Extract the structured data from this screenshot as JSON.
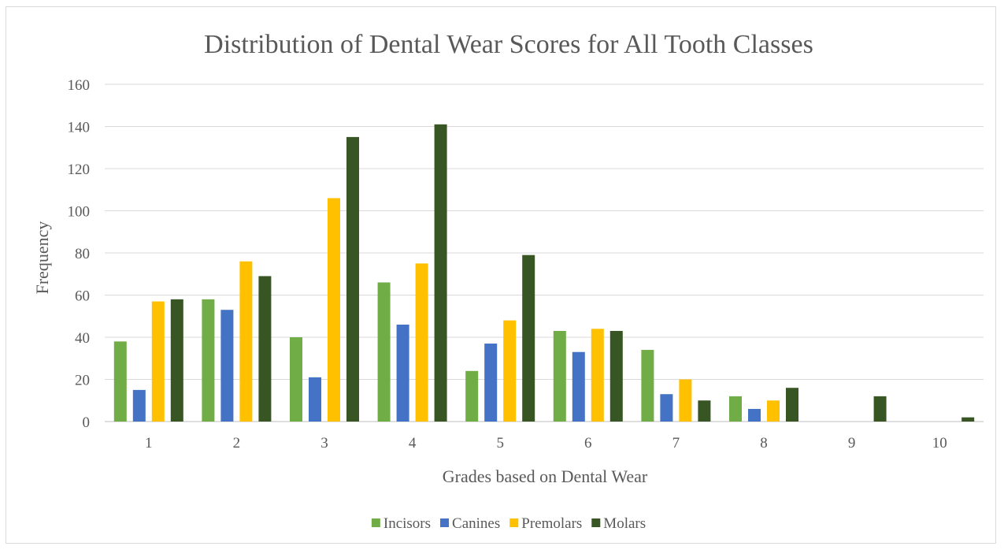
{
  "chart_data": {
    "type": "bar",
    "title": "Distribution of Dental Wear Scores for All Tooth Classes",
    "xlabel": "Grades based on Dental Wear",
    "ylabel": "Frequency",
    "categories": [
      "1",
      "2",
      "3",
      "4",
      "5",
      "6",
      "7",
      "8",
      "9",
      "10"
    ],
    "series": [
      {
        "name": "Incisors",
        "color": "#70ad47",
        "values": [
          38,
          58,
          40,
          66,
          24,
          43,
          34,
          12,
          0,
          0
        ]
      },
      {
        "name": "Canines",
        "color": "#4472c4",
        "values": [
          15,
          53,
          21,
          46,
          37,
          33,
          13,
          6,
          0,
          0
        ]
      },
      {
        "name": "Premolars",
        "color": "#ffc000",
        "values": [
          57,
          76,
          106,
          75,
          48,
          44,
          20,
          10,
          0,
          0
        ]
      },
      {
        "name": "Molars",
        "color": "#375623",
        "values": [
          58,
          69,
          135,
          141,
          79,
          43,
          10,
          16,
          12,
          2
        ]
      }
    ],
    "ylim": [
      0,
      160
    ],
    "yticks": [
      0,
      20,
      40,
      60,
      80,
      100,
      120,
      140,
      160
    ],
    "grid": true,
    "legend_position": "bottom"
  }
}
